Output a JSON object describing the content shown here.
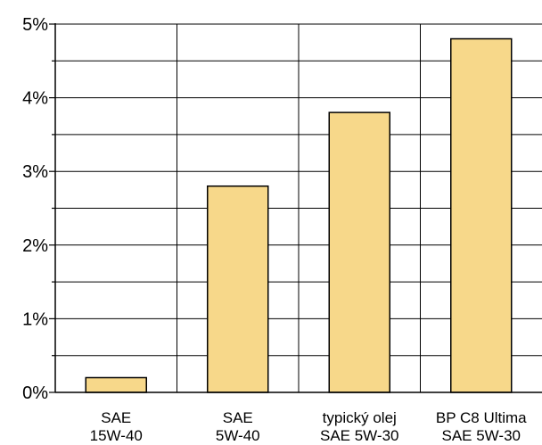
{
  "chart_data": {
    "type": "bar",
    "categories": [
      [
        "SAE",
        "15W-40"
      ],
      [
        "SAE",
        "5W-40"
      ],
      [
        "typický olej",
        "SAE 5W-30"
      ],
      [
        "BP C8 Ultima",
        "SAE 5W-30"
      ]
    ],
    "values": [
      0.2,
      2.8,
      3.8,
      4.8
    ],
    "ylim": [
      0,
      5
    ],
    "y_ticks": [
      "0%",
      "1%",
      "2%",
      "3%",
      "4%",
      "5%"
    ],
    "y_tick_values": [
      0,
      1,
      2,
      3,
      4,
      5
    ],
    "y_minor_step": 0.5,
    "title": "",
    "xlabel": "",
    "ylabel": "",
    "grid": true,
    "legend": "none",
    "bar_color": "#f7d88a",
    "bar_edge_color": "#000000",
    "grid_color": "#000000"
  }
}
